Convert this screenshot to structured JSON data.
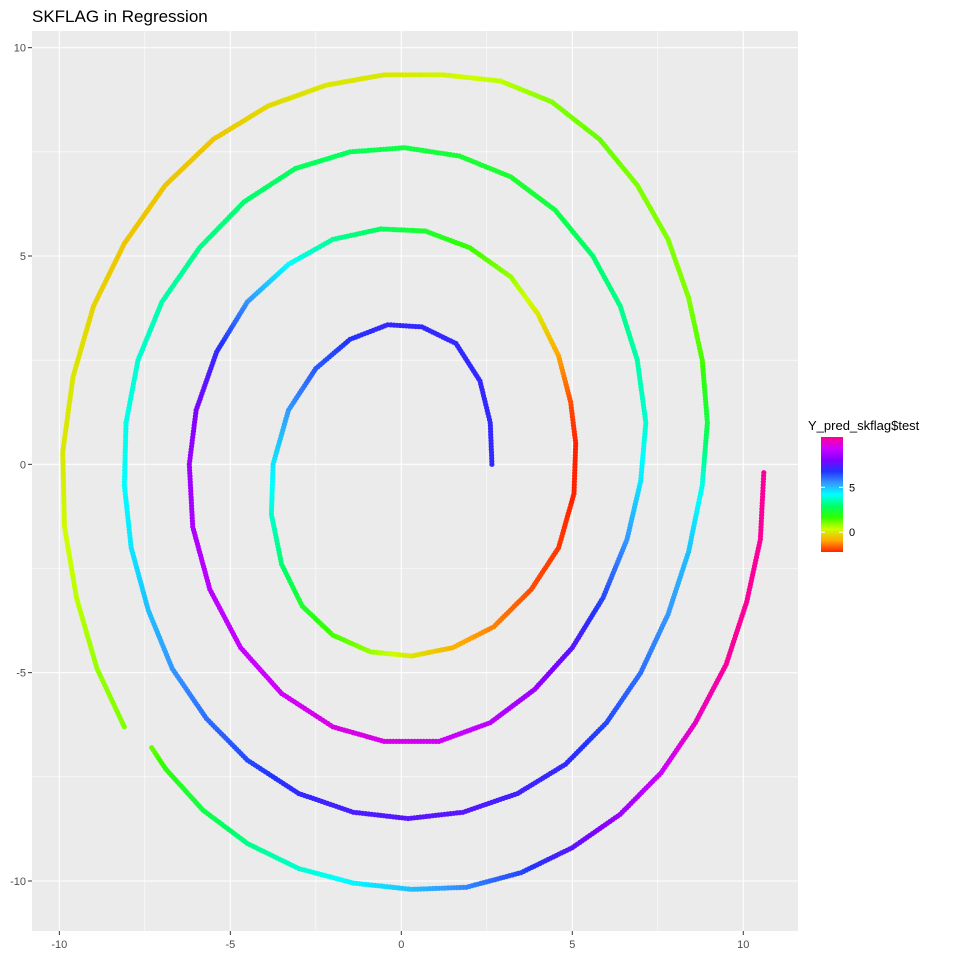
{
  "chart_data": {
    "type": "scatter",
    "title": "SKFLAG in Regression",
    "xlabel": "",
    "ylabel": "",
    "xlim": [
      -10.8,
      11.6
    ],
    "ylim": [
      -11.2,
      10.4
    ],
    "x_ticks": [
      -10,
      -5,
      0,
      5,
      10
    ],
    "y_ticks": [
      -10,
      -5,
      0,
      5,
      10
    ],
    "x_tick_labels": [
      "-10",
      "-5",
      "0",
      "5",
      "10"
    ],
    "y_tick_labels": [
      "-10",
      "-5",
      "0",
      "5",
      "10"
    ],
    "grid": true,
    "panel_background": "#ebebeb",
    "grid_color": "#ffffff",
    "series": [
      {
        "description": "spiral arm, predicted value color-coded",
        "points": [
          {
            "x": 2.65,
            "y": 0.0,
            "v": 7
          },
          {
            "x": 2.6,
            "y": 1.0,
            "v": 7
          },
          {
            "x": 2.3,
            "y": 2.0,
            "v": 7
          },
          {
            "x": 1.6,
            "y": 2.9,
            "v": 7
          },
          {
            "x": 0.6,
            "y": 3.3,
            "v": 7
          },
          {
            "x": -0.4,
            "y": 3.35,
            "v": 7
          },
          {
            "x": -1.5,
            "y": 3.0,
            "v": 6.8
          },
          {
            "x": -2.5,
            "y": 2.3,
            "v": 6.3
          },
          {
            "x": -3.3,
            "y": 1.3,
            "v": 5.5
          },
          {
            "x": -3.75,
            "y": 0.0,
            "v": 4.5
          },
          {
            "x": -3.8,
            "y": -1.2,
            "v": 3.8
          },
          {
            "x": -3.5,
            "y": -2.4,
            "v": 3
          },
          {
            "x": -2.9,
            "y": -3.4,
            "v": 2.2
          },
          {
            "x": -2.0,
            "y": -4.1,
            "v": 1.5
          },
          {
            "x": -0.9,
            "y": -4.5,
            "v": 0.8
          },
          {
            "x": 0.3,
            "y": -4.6,
            "v": 0
          },
          {
            "x": 1.5,
            "y": -4.4,
            "v": -0.8
          },
          {
            "x": 2.7,
            "y": -3.9,
            "v": -1.3
          },
          {
            "x": 3.8,
            "y": -3.0,
            "v": -1.8
          },
          {
            "x": 4.6,
            "y": -2.0,
            "v": -2
          },
          {
            "x": 5.05,
            "y": -0.7,
            "v": -2.2
          },
          {
            "x": 5.1,
            "y": 0.5,
            "v": -2.2
          },
          {
            "x": 4.95,
            "y": 1.5,
            "v": -1.8
          },
          {
            "x": 4.6,
            "y": 2.6,
            "v": -1
          },
          {
            "x": 4.0,
            "y": 3.6,
            "v": 0
          },
          {
            "x": 3.2,
            "y": 4.5,
            "v": 0.8
          },
          {
            "x": 2.0,
            "y": 5.2,
            "v": 1.6
          },
          {
            "x": 0.7,
            "y": 5.6,
            "v": 2.2
          },
          {
            "x": -0.6,
            "y": 5.65,
            "v": 2.8
          },
          {
            "x": -2.0,
            "y": 5.4,
            "v": 3.3
          },
          {
            "x": -3.3,
            "y": 4.8,
            "v": 4.2
          },
          {
            "x": -4.5,
            "y": 3.9,
            "v": 5.5
          },
          {
            "x": -5.4,
            "y": 2.7,
            "v": 7
          },
          {
            "x": -6.0,
            "y": 1.3,
            "v": 8
          },
          {
            "x": -6.2,
            "y": 0.0,
            "v": 8.5
          },
          {
            "x": -6.1,
            "y": -1.5,
            "v": 8.8
          },
          {
            "x": -5.6,
            "y": -3.0,
            "v": 9
          },
          {
            "x": -4.7,
            "y": -4.4,
            "v": 9.2
          },
          {
            "x": -3.5,
            "y": -5.5,
            "v": 9.4
          },
          {
            "x": -2.0,
            "y": -6.3,
            "v": 9.6
          },
          {
            "x": -0.5,
            "y": -6.65,
            "v": 9.6
          },
          {
            "x": 1.1,
            "y": -6.65,
            "v": 9.4
          },
          {
            "x": 2.6,
            "y": -6.2,
            "v": 9
          },
          {
            "x": 3.9,
            "y": -5.4,
            "v": 8.5
          },
          {
            "x": 5.0,
            "y": -4.4,
            "v": 7.5
          },
          {
            "x": 5.9,
            "y": -3.2,
            "v": 6.5
          },
          {
            "x": 6.6,
            "y": -1.8,
            "v": 5.5
          },
          {
            "x": 7.0,
            "y": -0.4,
            "v": 4.5
          },
          {
            "x": 7.15,
            "y": 1.0,
            "v": 3.8
          },
          {
            "x": 6.9,
            "y": 2.5,
            "v": 3.5
          },
          {
            "x": 6.4,
            "y": 3.8,
            "v": 3.2
          },
          {
            "x": 5.6,
            "y": 5.0,
            "v": 3
          },
          {
            "x": 4.5,
            "y": 6.1,
            "v": 2.5
          },
          {
            "x": 3.2,
            "y": 6.9,
            "v": 2.2
          },
          {
            "x": 1.7,
            "y": 7.4,
            "v": 2.3
          },
          {
            "x": 0.1,
            "y": 7.6,
            "v": 2.5
          },
          {
            "x": -1.5,
            "y": 7.5,
            "v": 2.8
          },
          {
            "x": -3.1,
            "y": 7.1,
            "v": 2.8
          },
          {
            "x": -4.6,
            "y": 6.3,
            "v": 3
          },
          {
            "x": -5.9,
            "y": 5.2,
            "v": 3.2
          },
          {
            "x": -7.0,
            "y": 3.9,
            "v": 3.5
          },
          {
            "x": -7.7,
            "y": 2.5,
            "v": 3.8
          },
          {
            "x": -8.05,
            "y": 1.0,
            "v": 4
          },
          {
            "x": -8.1,
            "y": -0.5,
            "v": 4.2
          },
          {
            "x": -7.9,
            "y": -2.0,
            "v": 4.5
          },
          {
            "x": -7.4,
            "y": -3.5,
            "v": 5
          },
          {
            "x": -6.7,
            "y": -4.9,
            "v": 5.5
          },
          {
            "x": -5.7,
            "y": -6.1,
            "v": 6
          },
          {
            "x": -4.5,
            "y": -7.1,
            "v": 6.5
          },
          {
            "x": -3.0,
            "y": -7.9,
            "v": 7
          },
          {
            "x": -1.4,
            "y": -8.35,
            "v": 7.3
          },
          {
            "x": 0.2,
            "y": -8.5,
            "v": 7.5
          },
          {
            "x": 1.8,
            "y": -8.35,
            "v": 7.5
          },
          {
            "x": 3.4,
            "y": -7.9,
            "v": 7.2
          },
          {
            "x": 4.8,
            "y": -7.2,
            "v": 7
          },
          {
            "x": 6.0,
            "y": -6.2,
            "v": 6.5
          },
          {
            "x": 7.0,
            "y": -5.0,
            "v": 6
          },
          {
            "x": 7.8,
            "y": -3.6,
            "v": 5.5
          },
          {
            "x": 8.4,
            "y": -2.1,
            "v": 5
          },
          {
            "x": 8.8,
            "y": -0.5,
            "v": 4
          },
          {
            "x": 8.95,
            "y": 1.0,
            "v": 2.5
          },
          {
            "x": 8.8,
            "y": 2.5,
            "v": 1.5
          },
          {
            "x": 8.4,
            "y": 4.0,
            "v": 1
          },
          {
            "x": 7.8,
            "y": 5.4,
            "v": 1
          },
          {
            "x": 6.9,
            "y": 6.7,
            "v": 1
          },
          {
            "x": 5.8,
            "y": 7.8,
            "v": 1.2
          },
          {
            "x": 4.4,
            "y": 8.7,
            "v": 1
          },
          {
            "x": 2.9,
            "y": 9.2,
            "v": 0.5
          },
          {
            "x": 1.2,
            "y": 9.35,
            "v": 0.2
          },
          {
            "x": -0.5,
            "y": 9.35,
            "v": 0
          },
          {
            "x": -2.2,
            "y": 9.1,
            "v": 0
          },
          {
            "x": -3.9,
            "y": 8.6,
            "v": -0.2
          },
          {
            "x": -5.5,
            "y": 7.8,
            "v": -0.5
          },
          {
            "x": -6.9,
            "y": 6.7,
            "v": -0.5
          },
          {
            "x": -8.1,
            "y": 5.3,
            "v": -0.5
          },
          {
            "x": -9.0,
            "y": 3.8,
            "v": -0.3
          },
          {
            "x": -9.6,
            "y": 2.1,
            "v": 0
          },
          {
            "x": -9.9,
            "y": 0.3,
            "v": 0
          },
          {
            "x": -9.85,
            "y": -1.5,
            "v": 0.3
          },
          {
            "x": -9.5,
            "y": -3.2,
            "v": 0.5
          },
          {
            "x": -8.9,
            "y": -4.9,
            "v": 0.8
          },
          {
            "x": -8.1,
            "y": -6.3,
            "v": 1
          },
          {
            "x": -7.3,
            "y": -6.8,
            "v": 1.2
          },
          {
            "x": -6.9,
            "y": -7.3,
            "v": 1.8
          },
          {
            "x": -5.8,
            "y": -8.3,
            "v": 2.5
          },
          {
            "x": -4.5,
            "y": -9.1,
            "v": 3.2
          },
          {
            "x": -3.0,
            "y": -9.7,
            "v": 3.8
          },
          {
            "x": -1.4,
            "y": -10.05,
            "v": 4.3
          },
          {
            "x": 0.3,
            "y": -10.2,
            "v": 5
          },
          {
            "x": 1.9,
            "y": -10.15,
            "v": 5.7
          },
          {
            "x": 3.5,
            "y": -9.8,
            "v": 6.5
          },
          {
            "x": 5.0,
            "y": -9.2,
            "v": 7.5
          },
          {
            "x": 6.4,
            "y": -8.4,
            "v": 8.5
          },
          {
            "x": 7.6,
            "y": -7.4,
            "v": 9.3
          },
          {
            "x": 8.6,
            "y": -6.2,
            "v": 10
          },
          {
            "x": 9.5,
            "y": -4.8,
            "v": 10.5
          },
          {
            "x": 10.1,
            "y": -3.3,
            "v": 10.5
          },
          {
            "x": 10.5,
            "y": -1.8,
            "v": 10.5
          },
          {
            "x": 10.6,
            "y": -0.2,
            "v": 10.5
          }
        ]
      }
    ],
    "legend": {
      "title": "Y_pred_skflag$test",
      "placement": "right",
      "range": [
        -2.2,
        10.6
      ],
      "labeled_ticks": [
        5,
        0
      ],
      "tick_labels": [
        "5",
        "0"
      ],
      "colors": [
        "#ff0090",
        "#cc00ff",
        "#7f00ff",
        "#2233ff",
        "#3399ff",
        "#00ffff",
        "#00ff66",
        "#33ff00",
        "#ccff00",
        "#ffaa00",
        "#ff2200"
      ]
    }
  }
}
